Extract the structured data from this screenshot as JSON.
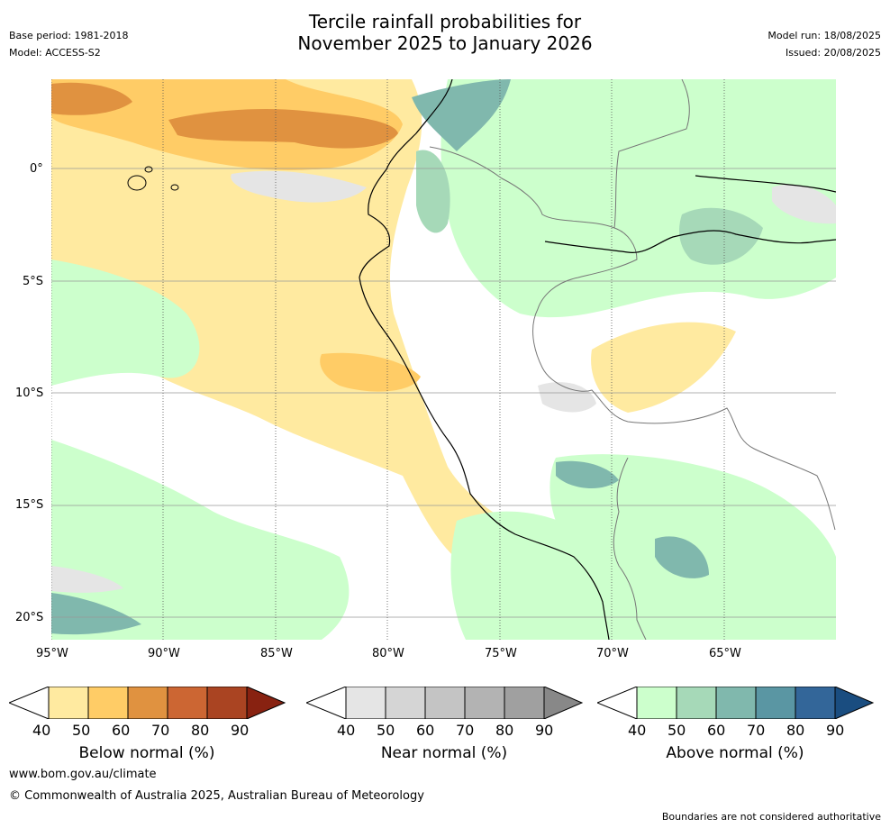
{
  "title": {
    "line1": "Tercile rainfall probabilities for",
    "line2": "November 2025 to January 2026"
  },
  "header_left": {
    "base_period": "Base period: 1981-2018",
    "model": "Model: ACCESS-S2"
  },
  "header_right": {
    "model_run": "Model run: 18/08/2025",
    "issued": "Issued: 20/08/2025"
  },
  "map": {
    "lat_labels": [
      "0°",
      "5°S",
      "10°S",
      "15°S",
      "20°S"
    ],
    "lon_labels": [
      "95°W",
      "90°W",
      "85°W",
      "80°W",
      "75°W",
      "70°W",
      "65°W"
    ]
  },
  "colorbars": [
    {
      "label": "Below normal (%)",
      "ticks": [
        "40",
        "50",
        "60",
        "70",
        "80",
        "90"
      ],
      "colors": [
        "#ffeaa0",
        "#ffcc66",
        "#e09240",
        "#cc6633",
        "#aa4422",
        "#882211"
      ]
    },
    {
      "label": "Near normal (%)",
      "ticks": [
        "40",
        "50",
        "60",
        "70",
        "80",
        "90"
      ],
      "colors": [
        "#e5e5e5",
        "#d5d5d5",
        "#c4c4c4",
        "#b3b3b3",
        "#a0a0a0",
        "#888888"
      ]
    },
    {
      "label": "Above normal (%)",
      "ticks": [
        "40",
        "50",
        "60",
        "70",
        "80",
        "90"
      ],
      "colors": [
        "#ccffcc",
        "#a6d9b8",
        "#80b8ad",
        "#5a96a3",
        "#336699",
        "#1a4d80"
      ]
    }
  ],
  "footer": {
    "website": "www.bom.gov.au/climate",
    "copyright": "© Commonwealth of Australia 2025, Australian Bureau of Meteorology",
    "disclaimer": "Boundaries are not considered authoritative"
  }
}
